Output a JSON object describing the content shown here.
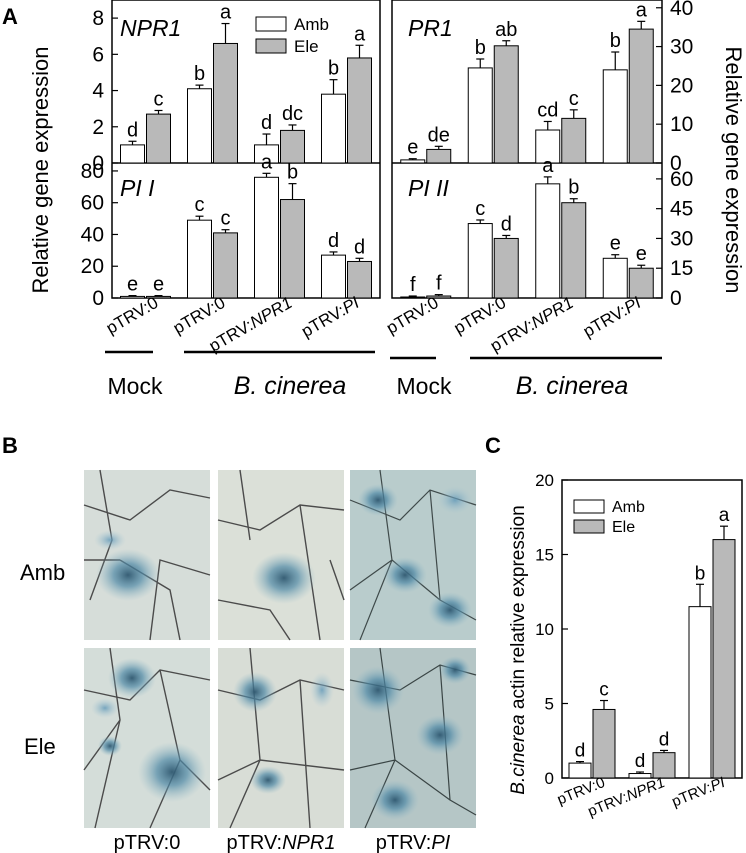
{
  "panel_labels": {
    "a": "A",
    "b": "B",
    "c": "C"
  },
  "legend": {
    "amb": "Amb",
    "ele": "Ele"
  },
  "colors": {
    "amb": "#ffffff",
    "ele": "#b9b9b9",
    "stroke": "#000000"
  },
  "axis_labels": {
    "left": "Relative gene expression",
    "right": "Relative gene expression",
    "c_y_italic": "B.cinerea",
    "c_y_rest": " actin relative expression"
  },
  "groups": {
    "mock": "Mock",
    "bcin": "B. cinerea"
  },
  "categories_a": [
    {
      "pre": "pTRV:",
      "it": "0"
    },
    {
      "pre": "pTRV:",
      "it": "0"
    },
    {
      "pre": "pTRV:",
      "it": "NPR1"
    },
    {
      "pre": "pTRV:",
      "it": "PI"
    }
  ],
  "photos": {
    "row_labels": [
      "Amb",
      "Ele"
    ],
    "col_labels": [
      {
        "pre": "pTRV:",
        "it": "0"
      },
      {
        "pre": "pTRV:",
        "it": "NPR1"
      },
      {
        "pre": "pTRV:",
        "it": "PI"
      }
    ]
  },
  "chart_data": [
    {
      "type": "bar",
      "id": "npr1",
      "title": "NPR1",
      "ylim": [
        0,
        9
      ],
      "yticks": [
        0,
        2,
        4,
        6,
        8
      ],
      "axis_side": "left",
      "amb": [
        1.0,
        4.1,
        1.0,
        3.8
      ],
      "amb_err": [
        0.2,
        0.2,
        0.6,
        0.8
      ],
      "ele": [
        2.7,
        6.6,
        1.8,
        5.8
      ],
      "ele_err": [
        0.2,
        1.1,
        0.3,
        0.7
      ],
      "amb_letters": [
        "d",
        "b",
        "d",
        "b"
      ],
      "ele_letters": [
        "c",
        "a",
        "dc",
        "a"
      ]
    },
    {
      "type": "bar",
      "id": "pr1",
      "title": "PR1",
      "ylim": [
        0,
        42
      ],
      "yticks": [
        0,
        10,
        20,
        30,
        40
      ],
      "axis_side": "right",
      "amb": [
        0.8,
        24.5,
        8.5,
        24.0
      ],
      "amb_err": [
        0.3,
        2.3,
        2.2,
        4.6
      ],
      "ele": [
        3.5,
        30.2,
        11.5,
        34.5
      ],
      "ele_err": [
        0.8,
        1.3,
        2.2,
        2.0
      ],
      "amb_letters": [
        "e",
        "b",
        "cd",
        "b"
      ],
      "ele_letters": [
        "de",
        "ab",
        "c",
        "a"
      ]
    },
    {
      "type": "bar",
      "id": "pi1",
      "title": "PI I",
      "ylim": [
        0,
        85
      ],
      "yticks": [
        0,
        20,
        40,
        60,
        80
      ],
      "axis_side": "left",
      "amb": [
        1.0,
        49.0,
        76.0,
        27.0
      ],
      "amb_err": [
        0.5,
        2.5,
        2.5,
        2.0
      ],
      "ele": [
        1.0,
        41.0,
        62.0,
        23.0
      ],
      "ele_err": [
        0.5,
        2.0,
        10.0,
        2.0
      ],
      "amb_letters": [
        "e",
        "c",
        "a",
        "d"
      ],
      "ele_letters": [
        "e",
        "c",
        "b",
        "d"
      ]
    },
    {
      "type": "bar",
      "id": "pi2",
      "title": "PI II",
      "ylim": [
        0,
        68
      ],
      "yticks": [
        0,
        15,
        30,
        45,
        60
      ],
      "axis_side": "right",
      "amb": [
        0.5,
        37.5,
        57.5,
        20.0
      ],
      "amb_err": [
        0.5,
        1.8,
        3.5,
        1.8
      ],
      "ele": [
        1.0,
        30.0,
        48.0,
        15.0
      ],
      "ele_err": [
        0.7,
        1.5,
        2.0,
        1.5
      ],
      "amb_letters": [
        "f",
        "c",
        "a",
        "e"
      ],
      "ele_letters": [
        "f",
        "d",
        "b",
        "e"
      ]
    },
    {
      "type": "bar",
      "id": "c",
      "ylim": [
        0,
        20
      ],
      "yticks": [
        0,
        5,
        10,
        15,
        20
      ],
      "categories": [
        {
          "pre": "pTRV:",
          "it": "0"
        },
        {
          "pre": "pTRV:",
          "it": "NPR1"
        },
        {
          "pre": "pTRV:",
          "it": "PI"
        }
      ],
      "amb": [
        1.0,
        0.3,
        11.5
      ],
      "amb_err": [
        0.1,
        0.1,
        1.5
      ],
      "ele": [
        4.6,
        1.7,
        16.0
      ],
      "ele_err": [
        0.6,
        0.15,
        0.9
      ],
      "amb_letters": [
        "d",
        "d",
        "b"
      ],
      "ele_letters": [
        "c",
        "d",
        "a"
      ]
    }
  ]
}
